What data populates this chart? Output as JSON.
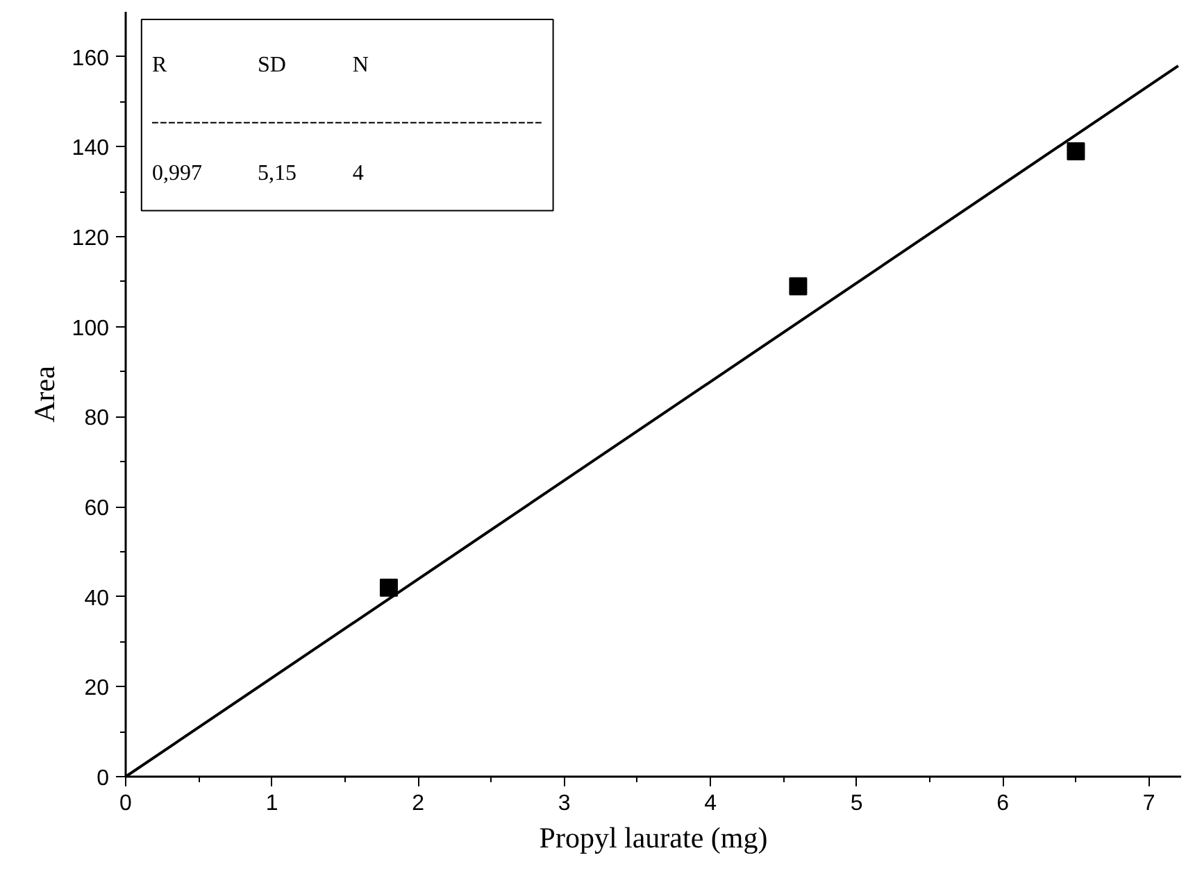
{
  "chart_data": {
    "type": "scatter",
    "xlabel": "Propyl laurate (mg)",
    "ylabel": "Area",
    "xlim": [
      0,
      7.22
    ],
    "ylim": [
      0,
      170
    ],
    "xticks": [
      0,
      1,
      2,
      3,
      4,
      5,
      6,
      7
    ],
    "yticks": [
      0,
      20,
      40,
      60,
      80,
      100,
      120,
      140,
      160
    ],
    "grid": false,
    "marker": "square",
    "series": [
      {
        "color": "#000000",
        "x": [
          1.8,
          4.6,
          6.5
        ],
        "values": [
          42,
          109,
          139
        ]
      },
      {
        "type": "line",
        "color": "#000000",
        "x": [
          0,
          7.2
        ],
        "values": [
          0,
          158
        ],
        "marker": "none",
        "line_style": "solid"
      }
    ],
    "annotations": [
      "R",
      "SD",
      "N",
      "0,997",
      "5,15",
      "4"
    ]
  }
}
